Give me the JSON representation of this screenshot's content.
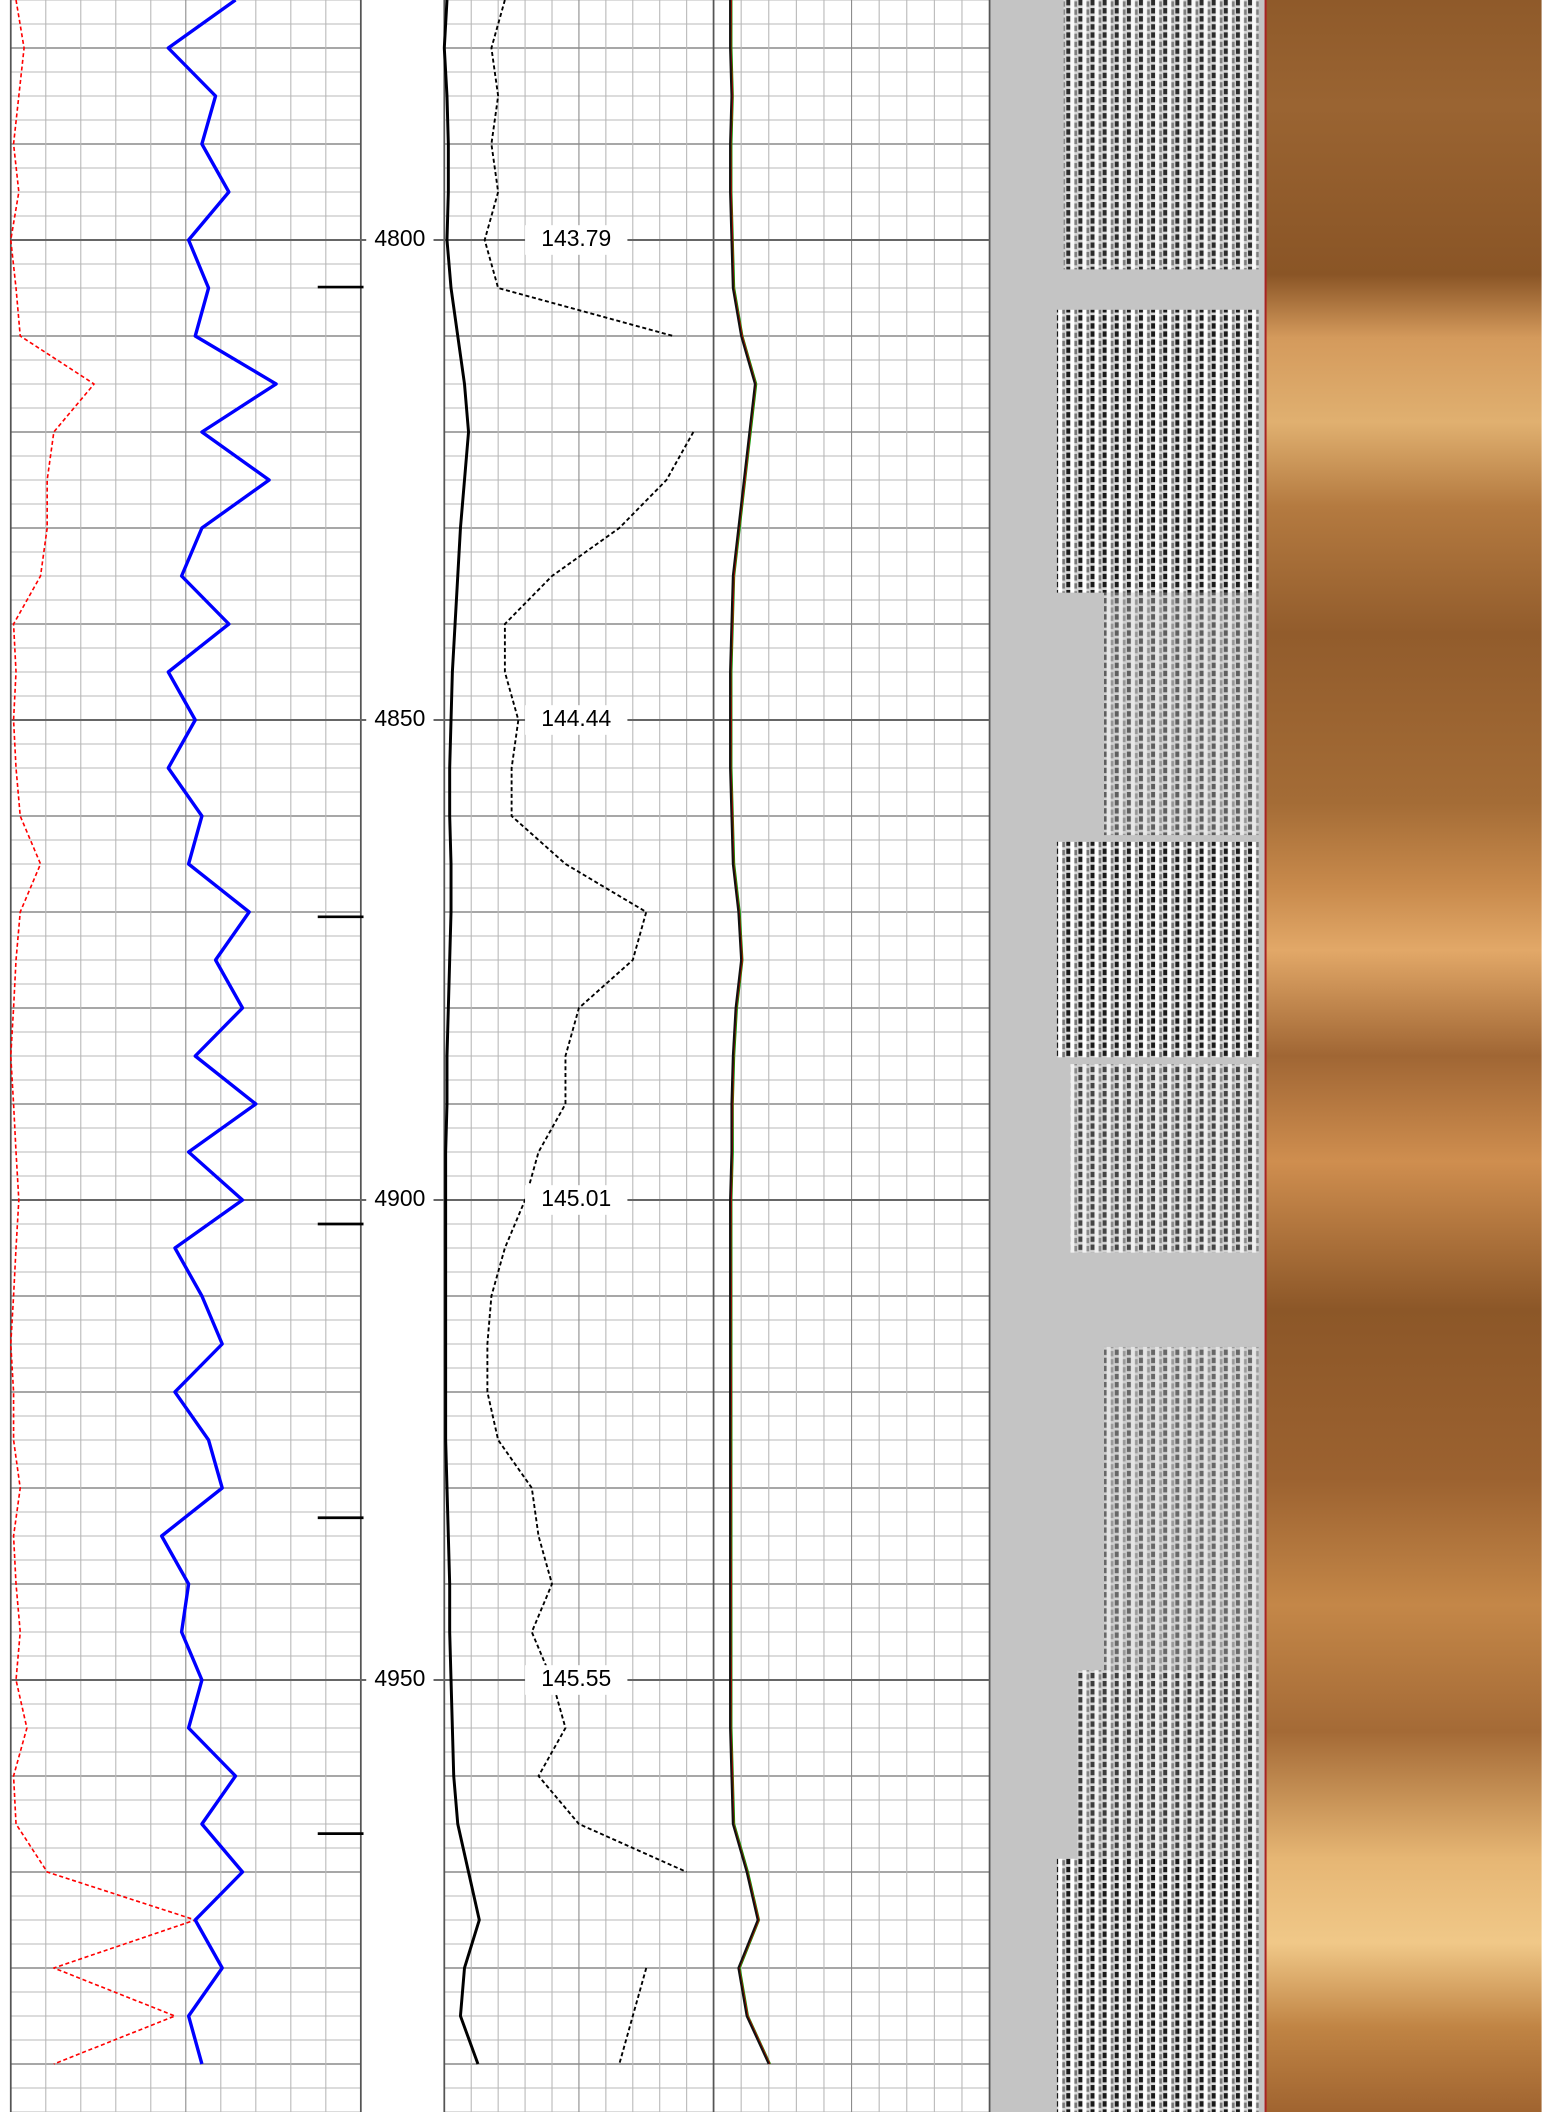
{
  "chart_data": {
    "type": "well-log",
    "ylim": [
      4775,
      4995
    ],
    "yticks": [
      4800,
      4850,
      4900,
      4950
    ],
    "grid": true,
    "temperature_at_ticks": [
      143.79,
      144.44,
      145.01,
      145.55
    ],
    "markers": [
      4804.9,
      4870.5,
      4902.5,
      4933.1,
      4966
    ],
    "depths": [
      4775,
      4780,
      4785,
      4790,
      4795,
      4800,
      4805,
      4810,
      4815,
      4820,
      4825,
      4830,
      4835,
      4840,
      4845,
      4850,
      4855,
      4860,
      4865,
      4870,
      4875,
      4880,
      4885,
      4890,
      4895,
      4900,
      4905,
      4910,
      4915,
      4920,
      4925,
      4930,
      4935,
      4940,
      4945,
      4950,
      4955,
      4960,
      4965,
      4970,
      4975,
      4980,
      4985,
      4990
    ],
    "series": [
      {
        "color": "#ff0000",
        "style": "dashed",
        "width": 1.2,
        "track": 0,
        "xlim": [
          0,
          100
        ],
        "values": [
          1.5,
          3.8,
          2.3,
          0.8,
          2.3,
          0,
          1.5,
          2.7,
          23.8,
          12.3,
          10.4,
          10.4,
          8.5,
          0.8,
          1.5,
          0.8,
          1.5,
          2.7,
          8.5,
          2.7,
          1.5,
          0.8,
          0,
          0.8,
          1.5,
          2.3,
          1.5,
          0.8,
          0,
          0.8,
          0.8,
          2.7,
          0.8,
          1.5,
          2.7,
          1.5,
          4.6,
          0.8,
          1.5,
          10.4,
          52.7,
          12.3,
          46.9,
          12.3
        ]
      },
      {
        "color": "#0000ff",
        "style": "solid",
        "width": 2.5,
        "track": 0,
        "xlim": [
          0,
          100
        ],
        "values": [
          64.2,
          45,
          58.5,
          54.6,
          62.3,
          50.8,
          56.5,
          52.7,
          75.8,
          54.6,
          73.8,
          54.6,
          48.8,
          62.3,
          45,
          52.7,
          45,
          54.6,
          50.8,
          68.1,
          58.5,
          66.2,
          52.7,
          70,
          50.8,
          66.2,
          46.9,
          54.6,
          60.4,
          46.9,
          56.5,
          60.4,
          43.1,
          50.8,
          48.8,
          54.6,
          50.8,
          64.2,
          54.6,
          66.2,
          52.7,
          60.4,
          50.8,
          54.6
        ]
      },
      {
        "color": "#000000",
        "style": "solid",
        "width": 2.2,
        "track": 2,
        "xlim": [
          0,
          100
        ],
        "values": [
          1,
          0,
          1,
          1.5,
          1.5,
          1,
          2.5,
          5,
          7.5,
          9,
          7.5,
          6,
          5,
          4,
          3,
          2.5,
          2,
          2,
          2.5,
          2.5,
          2,
          1.5,
          1,
          1,
          0.5,
          0.5,
          0.5,
          0.5,
          0.5,
          0.5,
          0.5,
          1,
          1.5,
          2,
          2,
          2.5,
          3,
          3.5,
          5,
          9,
          13,
          7.5,
          6,
          12.5
        ]
      },
      {
        "color": "#000000",
        "style": "dashed",
        "width": 1.4,
        "track": 2,
        "xlim": [
          0,
          100
        ],
        "values": [
          22.5,
          17.5,
          20,
          17.5,
          20,
          15,
          20,
          85,
          null,
          92.5,
          82.5,
          65,
          40,
          22.5,
          22.5,
          27.5,
          25,
          25,
          45,
          75,
          70,
          50,
          45,
          45,
          35,
          30,
          22.5,
          17.5,
          16,
          16,
          20,
          32.5,
          35,
          40,
          32.5,
          40,
          45,
          35,
          50,
          90,
          null,
          75,
          70,
          65
        ]
      },
      {
        "color": "#009900",
        "style": "solid",
        "width": 1.4,
        "track": 3,
        "xlim": [
          0,
          100
        ],
        "values": [
          6.5,
          6.5,
          7,
          6.5,
          6.5,
          7,
          7.5,
          10.5,
          15.5,
          13.5,
          11.5,
          9.5,
          7.5,
          7,
          6.5,
          6.5,
          6.5,
          7,
          7.5,
          9.5,
          10.5,
          8.5,
          7.5,
          7,
          7,
          6.5,
          6.5,
          6.5,
          6.5,
          6.5,
          6.5,
          6.5,
          6.5,
          6.5,
          6.5,
          6.5,
          6.5,
          7,
          7.5,
          12.5,
          16.5,
          9.5,
          12.5,
          20.5
        ]
      },
      {
        "color": "#dd0000",
        "style": "solid",
        "width": 1.4,
        "track": 3,
        "xlim": [
          0,
          100
        ],
        "values": [
          6.3,
          6.2,
          6.8,
          6.2,
          6.3,
          6.8,
          7.2,
          10.3,
          15.2,
          13.2,
          11.3,
          9.2,
          7.3,
          6.8,
          6.2,
          6.3,
          6.2,
          6.8,
          7.2,
          9.2,
          10.3,
          8.2,
          7.2,
          6.8,
          6.7,
          6.3,
          6.2,
          6.3,
          6.2,
          6.3,
          6.2,
          6.3,
          6.2,
          6.3,
          6.2,
          6.3,
          6.2,
          6.8,
          7.2,
          12.2,
          16.3,
          9.2,
          12.3,
          20.3
        ]
      },
      {
        "color": "#111111",
        "style": "solid",
        "width": 1.6,
        "track": 3,
        "xlim": [
          0,
          100
        ],
        "values": [
          6,
          6,
          6.5,
          6,
          6,
          6.5,
          7,
          10,
          15,
          13,
          11,
          9,
          7,
          6.5,
          6,
          6,
          6,
          6.5,
          7,
          9,
          10,
          8,
          7,
          6.5,
          6.5,
          6,
          6,
          6,
          6,
          6,
          6,
          6,
          6,
          6,
          6,
          6,
          6,
          6.5,
          7,
          12,
          16,
          9,
          12,
          20
        ]
      }
    ]
  }
}
